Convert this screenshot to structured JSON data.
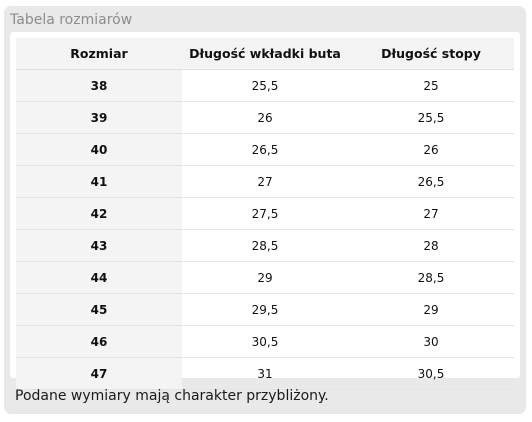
{
  "panel": {
    "title": "Tabela rozmiarów"
  },
  "table": {
    "headers": [
      "Rozmiar",
      "Długość wkładki buta",
      "Długość stopy"
    ],
    "rows": [
      [
        "38",
        "25,5",
        "25"
      ],
      [
        "39",
        "26",
        "25,5"
      ],
      [
        "40",
        "26,5",
        "26"
      ],
      [
        "41",
        "27",
        "26,5"
      ],
      [
        "42",
        "27,5",
        "27"
      ],
      [
        "43",
        "28,5",
        "28"
      ],
      [
        "44",
        "29",
        "28,5"
      ],
      [
        "45",
        "29,5",
        "29"
      ],
      [
        "46",
        "30,5",
        "30"
      ],
      [
        "47",
        "31",
        "30,5"
      ]
    ]
  },
  "footer": {
    "note": "Podane wymiary mają charakter przybliżony."
  }
}
